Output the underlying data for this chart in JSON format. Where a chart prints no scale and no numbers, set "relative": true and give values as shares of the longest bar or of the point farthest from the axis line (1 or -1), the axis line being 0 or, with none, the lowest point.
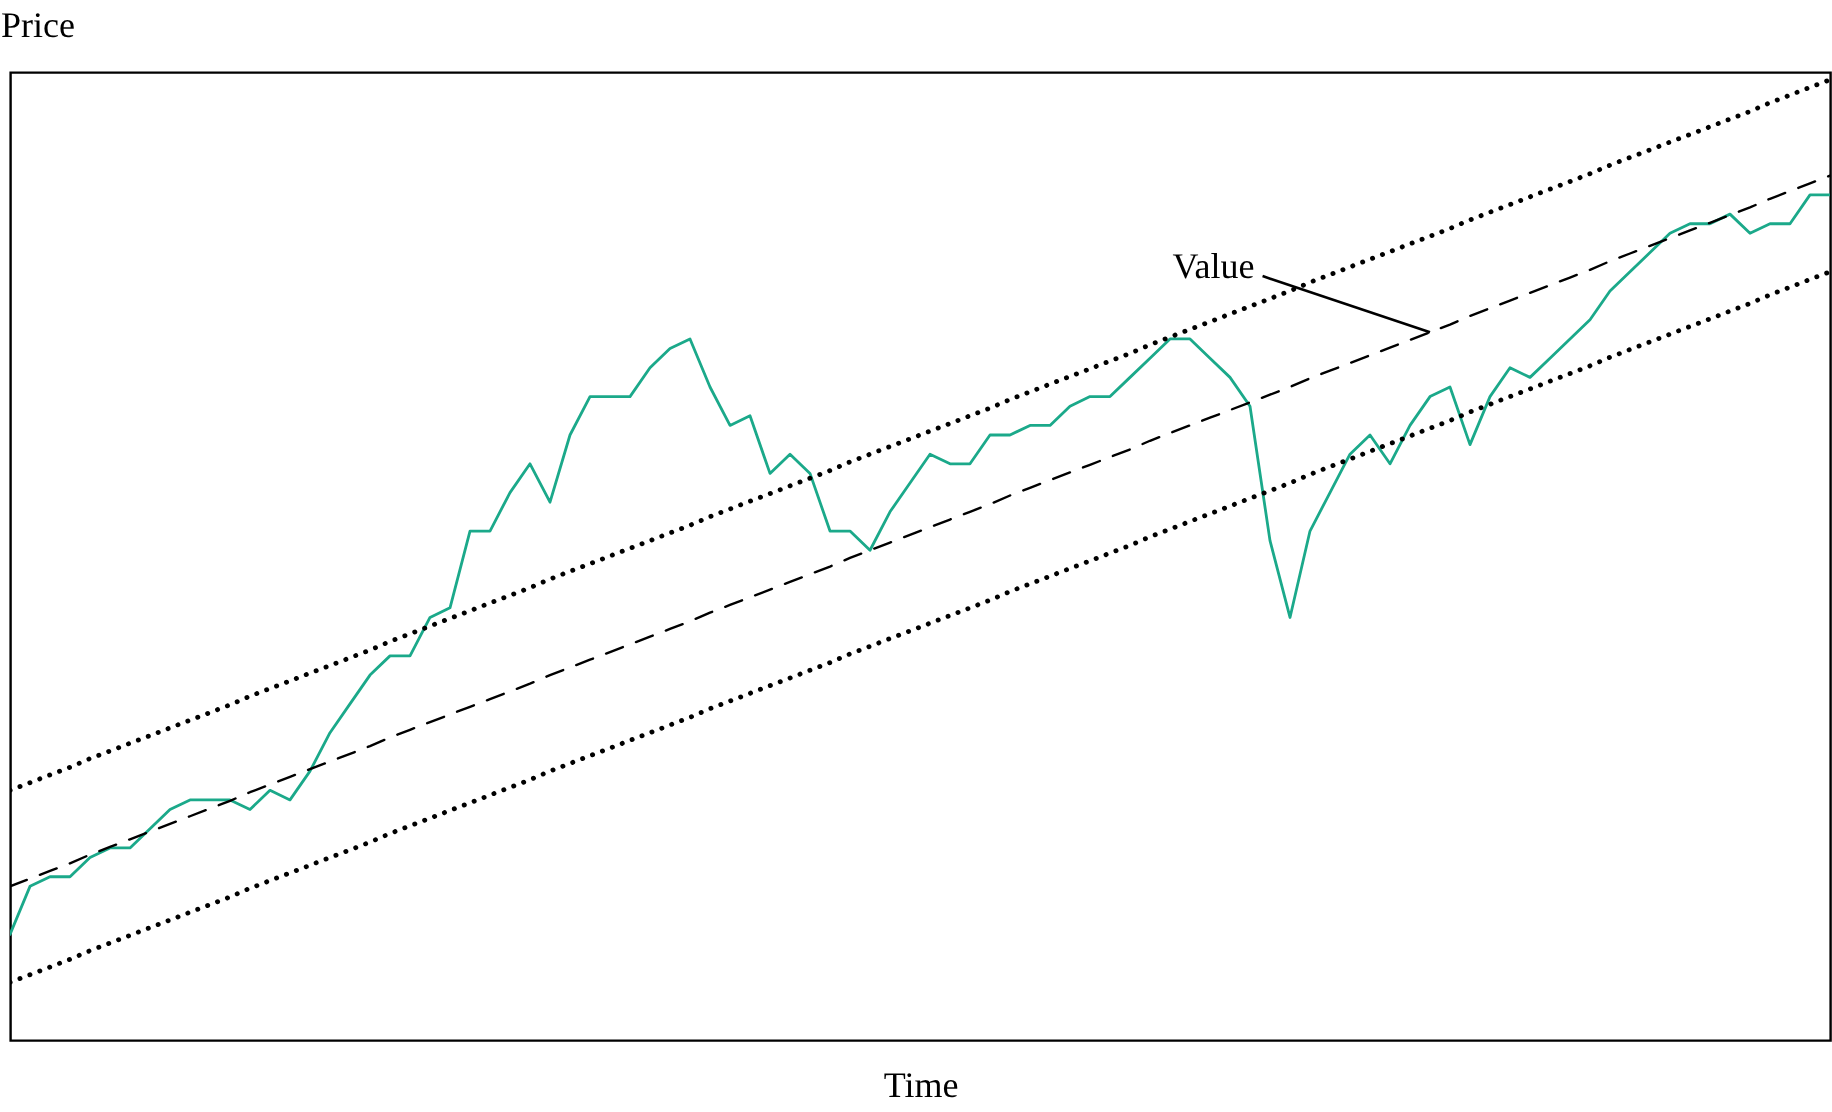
{
  "chart_data": {
    "type": "line",
    "xlabel": "Time",
    "ylabel": "Price",
    "relative": true,
    "categories": [
      null,
      null,
      null,
      null,
      null,
      null,
      null,
      null,
      null,
      null,
      null,
      null,
      null,
      null,
      null,
      null,
      null,
      null,
      null,
      null,
      null,
      null,
      null,
      null,
      null,
      null,
      null,
      null,
      null,
      null,
      null,
      null,
      null,
      null,
      null,
      null,
      null,
      null,
      null,
      null,
      null,
      null,
      null,
      null,
      null,
      null,
      null,
      null,
      null,
      null,
      null,
      null,
      null,
      null,
      null,
      null,
      null,
      null,
      null,
      null,
      null,
      null,
      null,
      null,
      null,
      null,
      null,
      null,
      null,
      null,
      null,
      null,
      null,
      null,
      null,
      null,
      null,
      null,
      null,
      null,
      null,
      null,
      null,
      null,
      null,
      null,
      null,
      null,
      null,
      null,
      null,
      null
    ],
    "series": [
      {
        "color": "#1ba98a",
        "line_style": "solid",
        "values": [
          0.11,
          0.16,
          0.17,
          0.17,
          0.19,
          0.2,
          0.2,
          0.22,
          0.24,
          0.25,
          0.25,
          0.25,
          0.24,
          0.26,
          0.25,
          0.28,
          0.32,
          0.35,
          0.38,
          0.4,
          0.4,
          0.44,
          0.45,
          0.53,
          0.53,
          0.57,
          0.6,
          0.56,
          0.63,
          0.67,
          0.67,
          0.67,
          0.7,
          0.72,
          0.73,
          0.68,
          0.64,
          0.65,
          0.59,
          0.61,
          0.59,
          0.53,
          0.53,
          0.51,
          0.55,
          0.58,
          0.61,
          0.6,
          0.6,
          0.63,
          0.63,
          0.64,
          0.64,
          0.66,
          0.67,
          0.67,
          0.69,
          0.71,
          0.73,
          0.73,
          0.71,
          0.69,
          0.66,
          0.52,
          0.44,
          0.53,
          0.57,
          0.61,
          0.63,
          0.6,
          0.64,
          0.67,
          0.68,
          0.62,
          0.67,
          0.7,
          0.69,
          0.71,
          0.73,
          0.75,
          0.78,
          0.8,
          0.82,
          0.84,
          0.85,
          0.85,
          0.86,
          0.84,
          0.85,
          0.85,
          0.88,
          0.88
        ]
      },
      {
        "color": "#000000",
        "line_style": "dashed",
        "values": [
          0.16,
          0.168,
          0.176,
          0.184,
          0.193,
          0.201,
          0.209,
          0.217,
          0.225,
          0.233,
          0.241,
          0.249,
          0.258,
          0.266,
          0.274,
          0.282,
          0.29,
          0.298,
          0.306,
          0.315,
          0.323,
          0.331,
          0.339,
          0.347,
          0.355,
          0.363,
          0.371,
          0.38,
          0.388,
          0.396,
          0.404,
          0.412,
          0.42,
          0.428,
          0.436,
          0.445,
          0.453,
          0.461,
          0.469,
          0.477,
          0.485,
          0.493,
          0.502,
          0.51,
          0.518,
          0.526,
          0.534,
          0.542,
          0.55,
          0.558,
          0.567,
          0.575,
          0.583,
          0.591,
          0.599,
          0.607,
          0.615,
          0.624,
          0.632,
          0.64,
          0.648,
          0.656,
          0.664,
          0.672,
          0.68,
          0.689,
          0.697,
          0.705,
          0.713,
          0.721,
          0.729,
          0.737,
          0.745,
          0.754,
          0.762,
          0.77,
          0.778,
          0.786,
          0.794,
          0.802,
          0.811,
          0.819,
          0.827,
          0.835,
          0.843,
          0.851,
          0.859,
          0.867,
          0.876,
          0.884,
          0.892,
          0.9
        ]
      },
      {
        "color": "#000000",
        "line_style": "dotted",
        "values": [
          0.26,
          0.268,
          0.276,
          0.284,
          0.293,
          0.301,
          0.309,
          0.317,
          0.325,
          0.333,
          0.341,
          0.349,
          0.358,
          0.366,
          0.374,
          0.382,
          0.39,
          0.398,
          0.406,
          0.415,
          0.423,
          0.431,
          0.439,
          0.447,
          0.455,
          0.463,
          0.471,
          0.48,
          0.488,
          0.496,
          0.504,
          0.512,
          0.52,
          0.528,
          0.536,
          0.545,
          0.553,
          0.561,
          0.569,
          0.577,
          0.585,
          0.593,
          0.602,
          0.61,
          0.618,
          0.626,
          0.634,
          0.642,
          0.65,
          0.658,
          0.667,
          0.675,
          0.683,
          0.691,
          0.699,
          0.707,
          0.715,
          0.724,
          0.732,
          0.74,
          0.748,
          0.756,
          0.764,
          0.772,
          0.78,
          0.789,
          0.797,
          0.805,
          0.813,
          0.821,
          0.829,
          0.837,
          0.845,
          0.854,
          0.862,
          0.87,
          0.878,
          0.886,
          0.894,
          0.902,
          0.911,
          0.919,
          0.927,
          0.935,
          0.943,
          0.951,
          0.959,
          0.967,
          0.976,
          0.984,
          0.992,
          1.0
        ]
      },
      {
        "color": "#000000",
        "line_style": "dotted",
        "values": [
          0.06,
          0.068,
          0.076,
          0.084,
          0.093,
          0.101,
          0.109,
          0.117,
          0.125,
          0.133,
          0.141,
          0.149,
          0.158,
          0.166,
          0.174,
          0.182,
          0.19,
          0.198,
          0.206,
          0.215,
          0.223,
          0.231,
          0.239,
          0.247,
          0.255,
          0.263,
          0.271,
          0.28,
          0.288,
          0.296,
          0.304,
          0.312,
          0.32,
          0.328,
          0.336,
          0.345,
          0.353,
          0.361,
          0.369,
          0.377,
          0.385,
          0.393,
          0.402,
          0.41,
          0.418,
          0.426,
          0.434,
          0.442,
          0.45,
          0.458,
          0.467,
          0.475,
          0.483,
          0.491,
          0.499,
          0.507,
          0.515,
          0.524,
          0.532,
          0.54,
          0.548,
          0.556,
          0.564,
          0.572,
          0.58,
          0.589,
          0.597,
          0.605,
          0.613,
          0.621,
          0.629,
          0.637,
          0.645,
          0.654,
          0.662,
          0.67,
          0.678,
          0.686,
          0.694,
          0.702,
          0.711,
          0.719,
          0.727,
          0.735,
          0.743,
          0.751,
          0.759,
          0.767,
          0.776,
          0.784,
          0.792,
          0.8
        ]
      }
    ],
    "annotations": [
      "Value"
    ]
  }
}
